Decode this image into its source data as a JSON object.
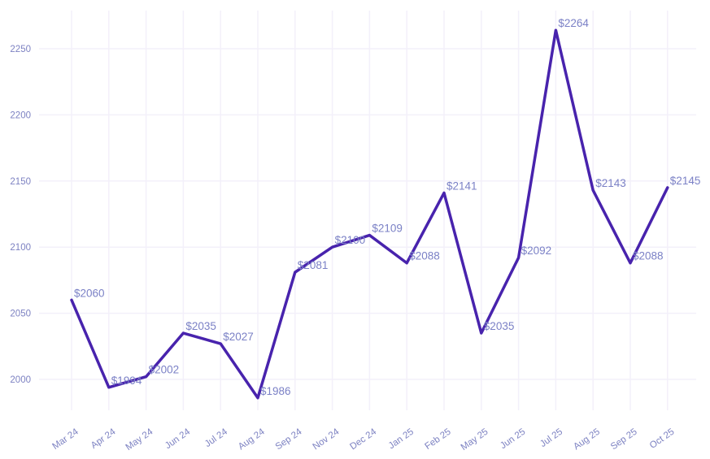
{
  "chart_data": {
    "type": "line",
    "title": "",
    "xlabel": "",
    "ylabel": "",
    "categories": [
      "Mar 24",
      "Apr 24",
      "May 24",
      "Jun 24",
      "Jul 24",
      "Aug 24",
      "Sep 24",
      "Nov 24",
      "Dec 24",
      "Jan 25",
      "Feb 25",
      "May 25",
      "Jun 25",
      "Jul 25",
      "Aug 25",
      "Sep 25",
      "Oct 25"
    ],
    "values": [
      2060,
      1994,
      2002,
      2035,
      2027,
      1986,
      2081,
      2100,
      2109,
      2088,
      2141,
      2035,
      2092,
      2264,
      2143,
      2088,
      2145
    ],
    "point_labels": [
      "$2060",
      "$1994",
      "$2002",
      "$2035",
      "$2027",
      "$1986",
      "$2081",
      "$2100",
      "$2109",
      "$2088",
      "$2141",
      "$2035",
      "$2092",
      "$2264",
      "$2143",
      "$2088",
      "$2145"
    ],
    "y_ticks": [
      2000,
      2050,
      2100,
      2150,
      2200,
      2250
    ],
    "ylim": [
      1977,
      2279
    ],
    "grid": true,
    "legend": false,
    "x_label_rotation_deg": -35,
    "colors": {
      "line": "#4823AD",
      "point_label": "#7B81C6",
      "axis_label": "#7D82C2",
      "gridline": "#F3F0FA",
      "background": "#FFFFFF"
    }
  }
}
